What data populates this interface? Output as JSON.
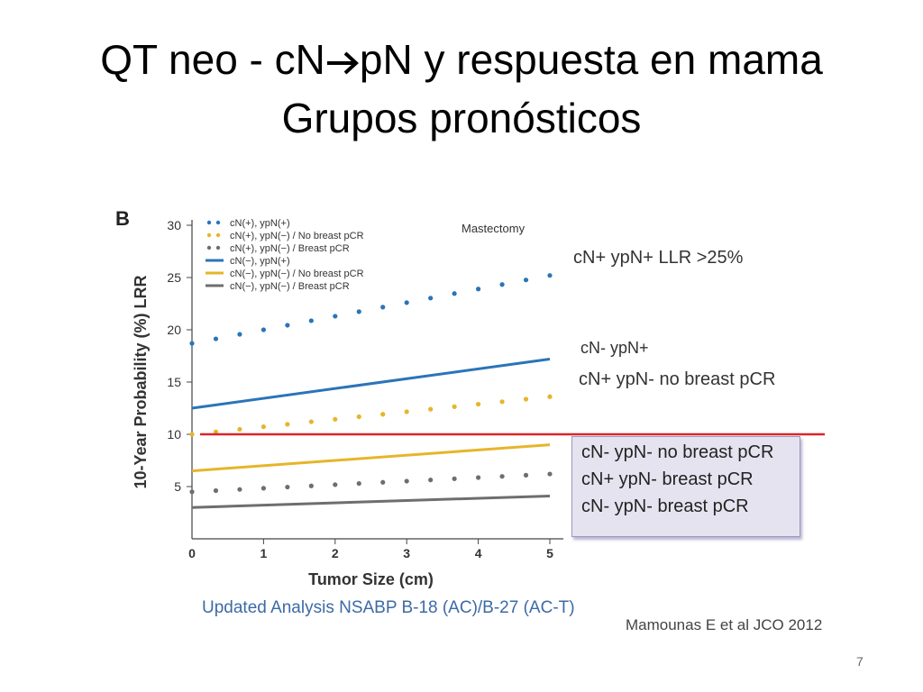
{
  "slide": {
    "title_part1": "QT neo - cN",
    "title_part2": "pN y respuesta en mama",
    "title_line2": "Grupos pronósticos",
    "arrow_icon": "right-arrow-icon",
    "page_number": "7"
  },
  "annotations": {
    "top_group": "cN+ ypN+   LLR >25%",
    "mid_group_1": "cN- ypN+",
    "mid_group_2": "cN+ ypN-   no breast pCR",
    "low_group": [
      "cN- ypN- no breast pCR",
      "cN+ ypN-  breast pCR",
      "cN- ypN-  breast pCR"
    ],
    "source_left": "Updated Analysis NSABP B-18 (AC)/B-27 (AC-T)",
    "source_right": "Mamounas E et al JCO 2012"
  },
  "colors": {
    "blue": "#2b74b8",
    "yellow": "#e6b52a",
    "gray": "#6e6e6e",
    "threshold": "#d9252a",
    "source_text": "#3c6aa5"
  },
  "chart_data": {
    "type": "line",
    "panel_label": "B",
    "title": "Mastectomy",
    "xlabel": "Tumor Size (cm)",
    "ylabel": "10-Year Probability (%) LRR",
    "xlim": [
      0,
      5
    ],
    "ylim": [
      0,
      30
    ],
    "x_ticks": [
      "0",
      "1",
      "2",
      "3",
      "4",
      "5"
    ],
    "y_ticks": [
      "5",
      "10",
      "15",
      "20",
      "25",
      "30"
    ],
    "x_origin_label": "0",
    "threshold": 10,
    "series": [
      {
        "name": "cN(+), ypN(+)",
        "style": "dotted",
        "color": "blue",
        "x": [
          0,
          5
        ],
        "values": [
          18.7,
          25.2
        ]
      },
      {
        "name": "cN(+), ypN(−) / No breast pCR",
        "style": "dotted",
        "color": "yellow",
        "x": [
          0,
          5
        ],
        "values": [
          10.0,
          13.6
        ]
      },
      {
        "name": "cN(+), ypN(−) / Breast pCR",
        "style": "dotted",
        "color": "gray",
        "x": [
          0,
          5
        ],
        "values": [
          4.5,
          6.2
        ]
      },
      {
        "name": "cN(−), ypN(+)",
        "style": "solid",
        "color": "blue",
        "x": [
          0,
          5
        ],
        "values": [
          12.5,
          17.2
        ]
      },
      {
        "name": "cN(−), ypN(−) / No breast pCR",
        "style": "solid",
        "color": "yellow",
        "x": [
          0,
          5
        ],
        "values": [
          6.5,
          9.0
        ]
      },
      {
        "name": "cN(−), ypN(−) / Breast pCR",
        "style": "solid",
        "color": "gray",
        "x": [
          0,
          5
        ],
        "values": [
          3.0,
          4.1
        ]
      }
    ]
  }
}
